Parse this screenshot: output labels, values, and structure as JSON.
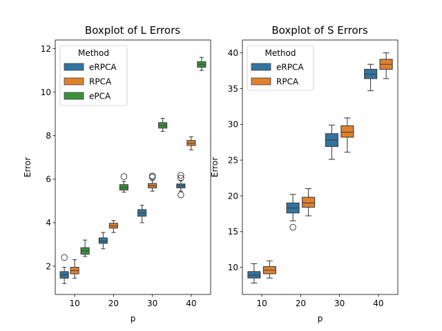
{
  "chart_data": [
    {
      "type": "box",
      "title": "Boxplot of L Errors",
      "xlabel": "p",
      "ylabel": "Error",
      "categories": [
        "10",
        "20",
        "30",
        "40"
      ],
      "ylim": [
        0.7,
        12.4
      ],
      "yticks": [
        2,
        4,
        6,
        8,
        10,
        12
      ],
      "legend_title": "Method",
      "legend_position": "top-left",
      "series": [
        {
          "name": "eRPCA",
          "color": "#3274a1",
          "boxes": [
            {
              "category": "10",
              "whislo": 1.2,
              "q1": 1.45,
              "med": 1.6,
              "q3": 1.75,
              "whishi": 1.95,
              "fliers": [
                2.4
              ]
            },
            {
              "category": "20",
              "whislo": 2.8,
              "q1": 3.05,
              "med": 3.15,
              "q3": 3.3,
              "whishi": 3.55,
              "fliers": []
            },
            {
              "category": "30",
              "whislo": 4.0,
              "q1": 4.3,
              "med": 4.45,
              "q3": 4.6,
              "whishi": 4.8,
              "fliers": []
            },
            {
              "category": "40",
              "whislo": 5.45,
              "q1": 5.6,
              "med": 5.7,
              "q3": 5.78,
              "whishi": 5.95,
              "fliers": [
                5.28,
                6.05,
                6.18
              ]
            }
          ]
        },
        {
          "name": "RPCA",
          "color": "#e1812c",
          "boxes": [
            {
              "category": "10",
              "whislo": 1.45,
              "q1": 1.65,
              "med": 1.8,
              "q3": 1.95,
              "whishi": 2.3,
              "fliers": []
            },
            {
              "category": "20",
              "whislo": 3.55,
              "q1": 3.75,
              "med": 3.85,
              "q3": 3.97,
              "whishi": 4.1,
              "fliers": []
            },
            {
              "category": "30",
              "whislo": 5.45,
              "q1": 5.6,
              "med": 5.7,
              "q3": 5.8,
              "whishi": 5.95,
              "fliers": [
                6.1,
                6.15
              ]
            },
            {
              "category": "40",
              "whislo": 7.35,
              "q1": 7.55,
              "med": 7.65,
              "q3": 7.78,
              "whishi": 7.95,
              "fliers": []
            }
          ]
        },
        {
          "name": "ePCA",
          "color": "#3a923a",
          "boxes": [
            {
              "category": "10",
              "whislo": 2.45,
              "q1": 2.55,
              "med": 2.7,
              "q3": 2.85,
              "whishi": 3.2,
              "fliers": []
            },
            {
              "category": "20",
              "whislo": 5.4,
              "q1": 5.5,
              "med": 5.62,
              "q3": 5.75,
              "whishi": 5.9,
              "fliers": [
                6.12
              ]
            },
            {
              "category": "30",
              "whislo": 8.2,
              "q1": 8.35,
              "med": 8.47,
              "q3": 8.6,
              "whishi": 8.8,
              "fliers": []
            },
            {
              "category": "40",
              "whislo": 11.0,
              "q1": 11.15,
              "med": 11.28,
              "q3": 11.4,
              "whishi": 11.6,
              "fliers": []
            }
          ]
        }
      ]
    },
    {
      "type": "box",
      "title": "Boxplot of S Errors",
      "xlabel": "p",
      "ylabel": "Error",
      "categories": [
        "10",
        "20",
        "30",
        "40"
      ],
      "ylim": [
        6.2,
        41.8
      ],
      "yticks": [
        10,
        15,
        20,
        25,
        30,
        35,
        40
      ],
      "legend_title": "Method",
      "legend_position": "top-left",
      "series": [
        {
          "name": "eRPCA",
          "color": "#3274a1",
          "boxes": [
            {
              "category": "10",
              "whislo": 7.8,
              "q1": 8.5,
              "med": 8.9,
              "q3": 9.4,
              "whishi": 10.5,
              "fliers": []
            },
            {
              "category": "20",
              "whislo": 16.5,
              "q1": 17.6,
              "med": 18.3,
              "q3": 19.0,
              "whishi": 20.2,
              "fliers": [
                15.6
              ]
            },
            {
              "category": "30",
              "whislo": 25.1,
              "q1": 26.9,
              "med": 27.8,
              "q3": 28.7,
              "whishi": 29.9,
              "fliers": []
            },
            {
              "category": "40",
              "whislo": 34.7,
              "q1": 36.4,
              "med": 37.0,
              "q3": 37.7,
              "whishi": 38.4,
              "fliers": []
            }
          ]
        },
        {
          "name": "RPCA",
          "color": "#e1812c",
          "boxes": [
            {
              "category": "10",
              "whislo": 8.5,
              "q1": 9.1,
              "med": 9.6,
              "q3": 10.1,
              "whishi": 10.9,
              "fliers": []
            },
            {
              "category": "20",
              "whislo": 17.2,
              "q1": 18.4,
              "med": 19.0,
              "q3": 19.8,
              "whishi": 21.0,
              "fliers": []
            },
            {
              "category": "30",
              "whislo": 26.1,
              "q1": 28.2,
              "med": 28.9,
              "q3": 29.8,
              "whishi": 30.9,
              "fliers": []
            },
            {
              "category": "40",
              "whislo": 36.4,
              "q1": 37.7,
              "med": 38.4,
              "q3": 39.1,
              "whishi": 40.0,
              "fliers": []
            }
          ]
        }
      ]
    }
  ]
}
